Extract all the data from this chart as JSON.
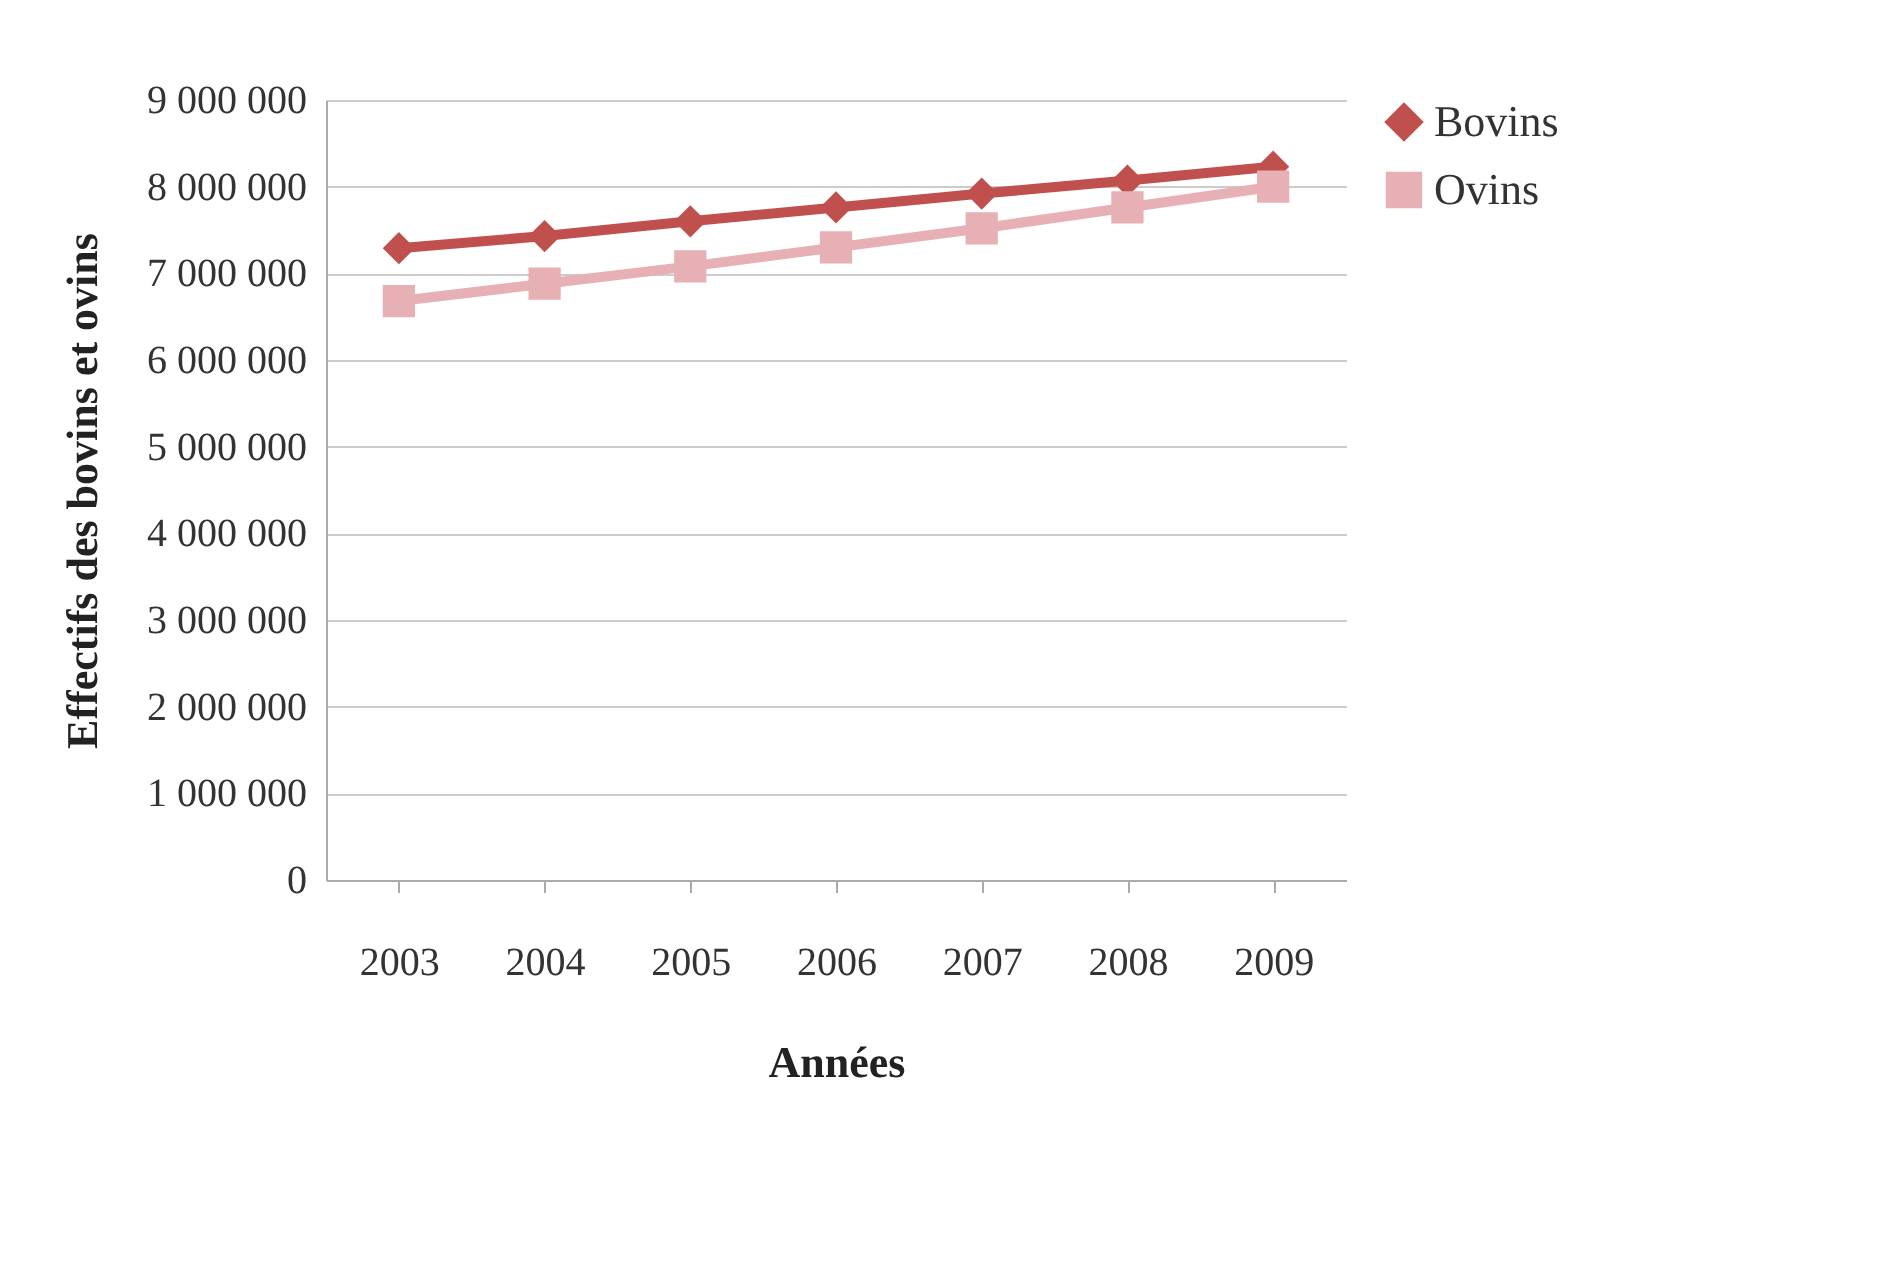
{
  "chart_data": {
    "type": "line",
    "xlabel": "Années",
    "ylabel": "Effectifs des bovins et ovins",
    "categories": [
      "2003",
      "2004",
      "2005",
      "2006",
      "2007",
      "2008",
      "2009"
    ],
    "series": [
      {
        "name": "Bovins",
        "color": "#c0504d",
        "marker": "diamond",
        "values": [
          7290000,
          7430000,
          7600000,
          7760000,
          7920000,
          8070000,
          8230000
        ]
      },
      {
        "name": "Ovins",
        "color": "#e6b0b4",
        "marker": "square",
        "values": [
          6680000,
          6880000,
          7080000,
          7300000,
          7520000,
          7760000,
          8000000
        ]
      }
    ],
    "ylim": [
      0,
      9000000
    ],
    "yticks": [
      {
        "value": 0,
        "label": "0"
      },
      {
        "value": 1000000,
        "label": "1 000 000"
      },
      {
        "value": 2000000,
        "label": "2 000 000"
      },
      {
        "value": 3000000,
        "label": "3 000 000"
      },
      {
        "value": 4000000,
        "label": "4 000 000"
      },
      {
        "value": 5000000,
        "label": "5 000 000"
      },
      {
        "value": 6000000,
        "label": "6 000 000"
      },
      {
        "value": 7000000,
        "label": "7 000 000"
      },
      {
        "value": 8000000,
        "label": "8 000 000"
      },
      {
        "value": 9000000,
        "label": "9 000 000"
      }
    ],
    "grid": "y",
    "legend": "right"
  }
}
